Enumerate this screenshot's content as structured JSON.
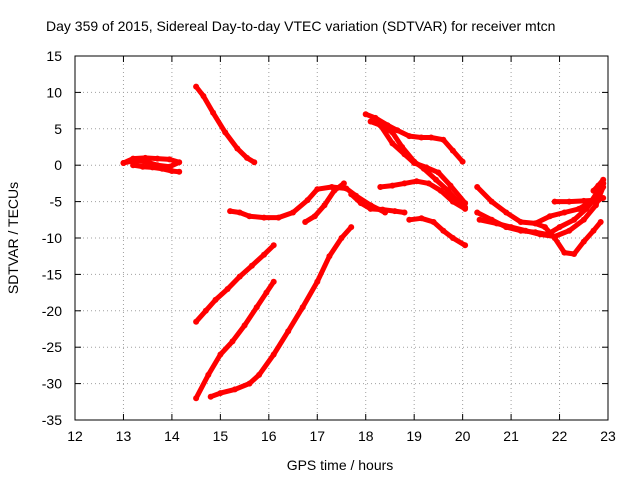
{
  "chart_data": {
    "type": "line",
    "title": "Day 359 of 2015, Sidereal Day-to-day VTEC variation (SDTVAR) for receiver mtcn",
    "xlabel": "GPS time / hours",
    "ylabel": "SDTVAR / TECUs",
    "xlim": [
      12,
      23
    ],
    "ylim": [
      -35,
      15
    ],
    "xticks": [
      12,
      13,
      14,
      15,
      16,
      17,
      18,
      19,
      20,
      21,
      22,
      23
    ],
    "yticks": [
      -35,
      -30,
      -25,
      -20,
      -15,
      -10,
      -5,
      0,
      5,
      10,
      15
    ],
    "grid": true,
    "grid_style": "dotted",
    "legend": "none",
    "series_color": "#ff0000",
    "series": [
      {
        "x": [
          13.0,
          13.2,
          13.45,
          13.7,
          13.95,
          14.15,
          13.95,
          13.7,
          13.45,
          13.2,
          13.0
        ],
        "y": [
          0.3,
          0.9,
          1.0,
          0.9,
          0.8,
          0.4,
          -0.2,
          0.0,
          0.5,
          0.6,
          0.3
        ]
      },
      {
        "x": [
          13.2,
          13.4,
          13.6,
          13.8,
          14.0,
          14.15
        ],
        "y": [
          0.0,
          -0.2,
          -0.3,
          -0.5,
          -0.8,
          -0.9
        ]
      },
      {
        "x": [
          14.5,
          14.65,
          14.85,
          15.1,
          15.35,
          15.55,
          15.7
        ],
        "y": [
          10.8,
          9.5,
          7.2,
          4.5,
          2.3,
          1.0,
          0.4
        ]
      },
      {
        "x": [
          15.2,
          15.4,
          15.6,
          15.9,
          16.2,
          16.5,
          16.8,
          17.0,
          17.3,
          17.6,
          17.8,
          18.1,
          18.4
        ],
        "y": [
          -6.3,
          -6.5,
          -7.0,
          -7.2,
          -7.2,
          -6.5,
          -4.8,
          -3.3,
          -3.0,
          -3.2,
          -4.2,
          -5.5,
          -6.5
        ]
      },
      {
        "x": [
          17.7,
          17.9,
          18.1,
          18.35,
          18.6,
          18.8
        ],
        "y": [
          -4.0,
          -5.2,
          -6.0,
          -6.1,
          -6.3,
          -6.5
        ]
      },
      {
        "x": [
          16.75,
          16.95,
          17.15,
          17.35,
          17.55
        ],
        "y": [
          -7.8,
          -7.0,
          -5.5,
          -3.5,
          -2.5
        ]
      },
      {
        "x": [
          14.5,
          14.7,
          14.9,
          15.15,
          15.4,
          15.65,
          15.9,
          16.1
        ],
        "y": [
          -21.5,
          -20.0,
          -18.5,
          -17.0,
          -15.3,
          -13.8,
          -12.3,
          -11.0
        ]
      },
      {
        "x": [
          14.5,
          14.75,
          15.0,
          15.25,
          15.5,
          15.75,
          15.95,
          16.1
        ],
        "y": [
          -32.0,
          -28.8,
          -26.0,
          -24.2,
          -22.0,
          -19.5,
          -17.5,
          -16.0
        ]
      },
      {
        "x": [
          14.8,
          15.0,
          15.3,
          15.6,
          15.8,
          16.1,
          16.4,
          16.7,
          17.0,
          17.25,
          17.5,
          17.7
        ],
        "y": [
          -31.8,
          -31.3,
          -30.8,
          -30.0,
          -28.8,
          -26.0,
          -22.8,
          -19.5,
          -16.0,
          -12.5,
          -10.0,
          -8.5
        ]
      },
      {
        "x": [
          18.0,
          18.2,
          18.45,
          18.65,
          18.9,
          19.15,
          19.35,
          19.6,
          19.8,
          20.0
        ],
        "y": [
          7.0,
          6.5,
          5.5,
          4.8,
          4.0,
          3.8,
          3.8,
          3.5,
          2.0,
          0.5
        ]
      },
      {
        "x": [
          18.1,
          18.3,
          18.55,
          18.75,
          19.0,
          19.2,
          19.45,
          19.7,
          19.9,
          20.05
        ],
        "y": [
          6.0,
          5.5,
          4.5,
          2.5,
          0.5,
          -0.5,
          -2.0,
          -3.5,
          -5.0,
          -5.8
        ]
      },
      {
        "x": [
          18.3,
          18.55,
          18.8,
          19.0,
          19.25,
          19.5,
          19.75,
          20.05
        ],
        "y": [
          5.5,
          3.0,
          1.5,
          0.3,
          -0.3,
          -1.0,
          -2.8,
          -5.2
        ]
      },
      {
        "x": [
          18.3,
          18.55,
          18.8,
          19.05,
          19.3,
          19.55,
          19.8,
          20.05
        ],
        "y": [
          -3.0,
          -2.8,
          -2.5,
          -2.2,
          -2.5,
          -3.5,
          -5.0,
          -6.0
        ]
      },
      {
        "x": [
          18.9,
          19.15,
          19.4,
          19.6,
          19.8,
          20.05
        ],
        "y": [
          -7.5,
          -7.3,
          -7.8,
          -9.0,
          -10.0,
          -11.0
        ]
      },
      {
        "x": [
          20.3,
          20.6,
          20.9,
          21.2,
          21.5,
          21.75,
          22.0,
          22.3,
          22.55,
          22.8,
          22.9
        ],
        "y": [
          -6.5,
          -7.5,
          -8.5,
          -9.0,
          -9.2,
          -9.5,
          -8.5,
          -7.5,
          -6.0,
          -4.0,
          -2.5
        ]
      },
      {
        "x": [
          20.3,
          20.6,
          20.9,
          21.2,
          21.5,
          21.8,
          22.1,
          22.4,
          22.65,
          22.9
        ],
        "y": [
          -3.0,
          -5.0,
          -6.5,
          -7.8,
          -8.0,
          -7.0,
          -6.5,
          -6.0,
          -5.0,
          -2.5
        ]
      },
      {
        "x": [
          20.35,
          20.7,
          21.0,
          21.3,
          21.6,
          21.9,
          22.2,
          22.5,
          22.75,
          22.9
        ],
        "y": [
          -7.5,
          -8.0,
          -8.5,
          -9.0,
          -9.5,
          -9.8,
          -9.0,
          -7.5,
          -5.5,
          -3.0
        ]
      },
      {
        "x": [
          21.5,
          21.7,
          21.9,
          22.1,
          22.3,
          22.5,
          22.7,
          22.85
        ],
        "y": [
          -8.0,
          -8.5,
          -10.0,
          -12.0,
          -12.2,
          -10.5,
          -9.0,
          -7.8
        ]
      },
      {
        "x": [
          21.9,
          22.2,
          22.5,
          22.8,
          22.9
        ],
        "y": [
          -5.0,
          -5.0,
          -4.9,
          -4.8,
          -4.5
        ]
      },
      {
        "x": [
          22.7,
          22.8,
          22.9
        ],
        "y": [
          -3.5,
          -2.8,
          -2.0
        ]
      }
    ]
  }
}
